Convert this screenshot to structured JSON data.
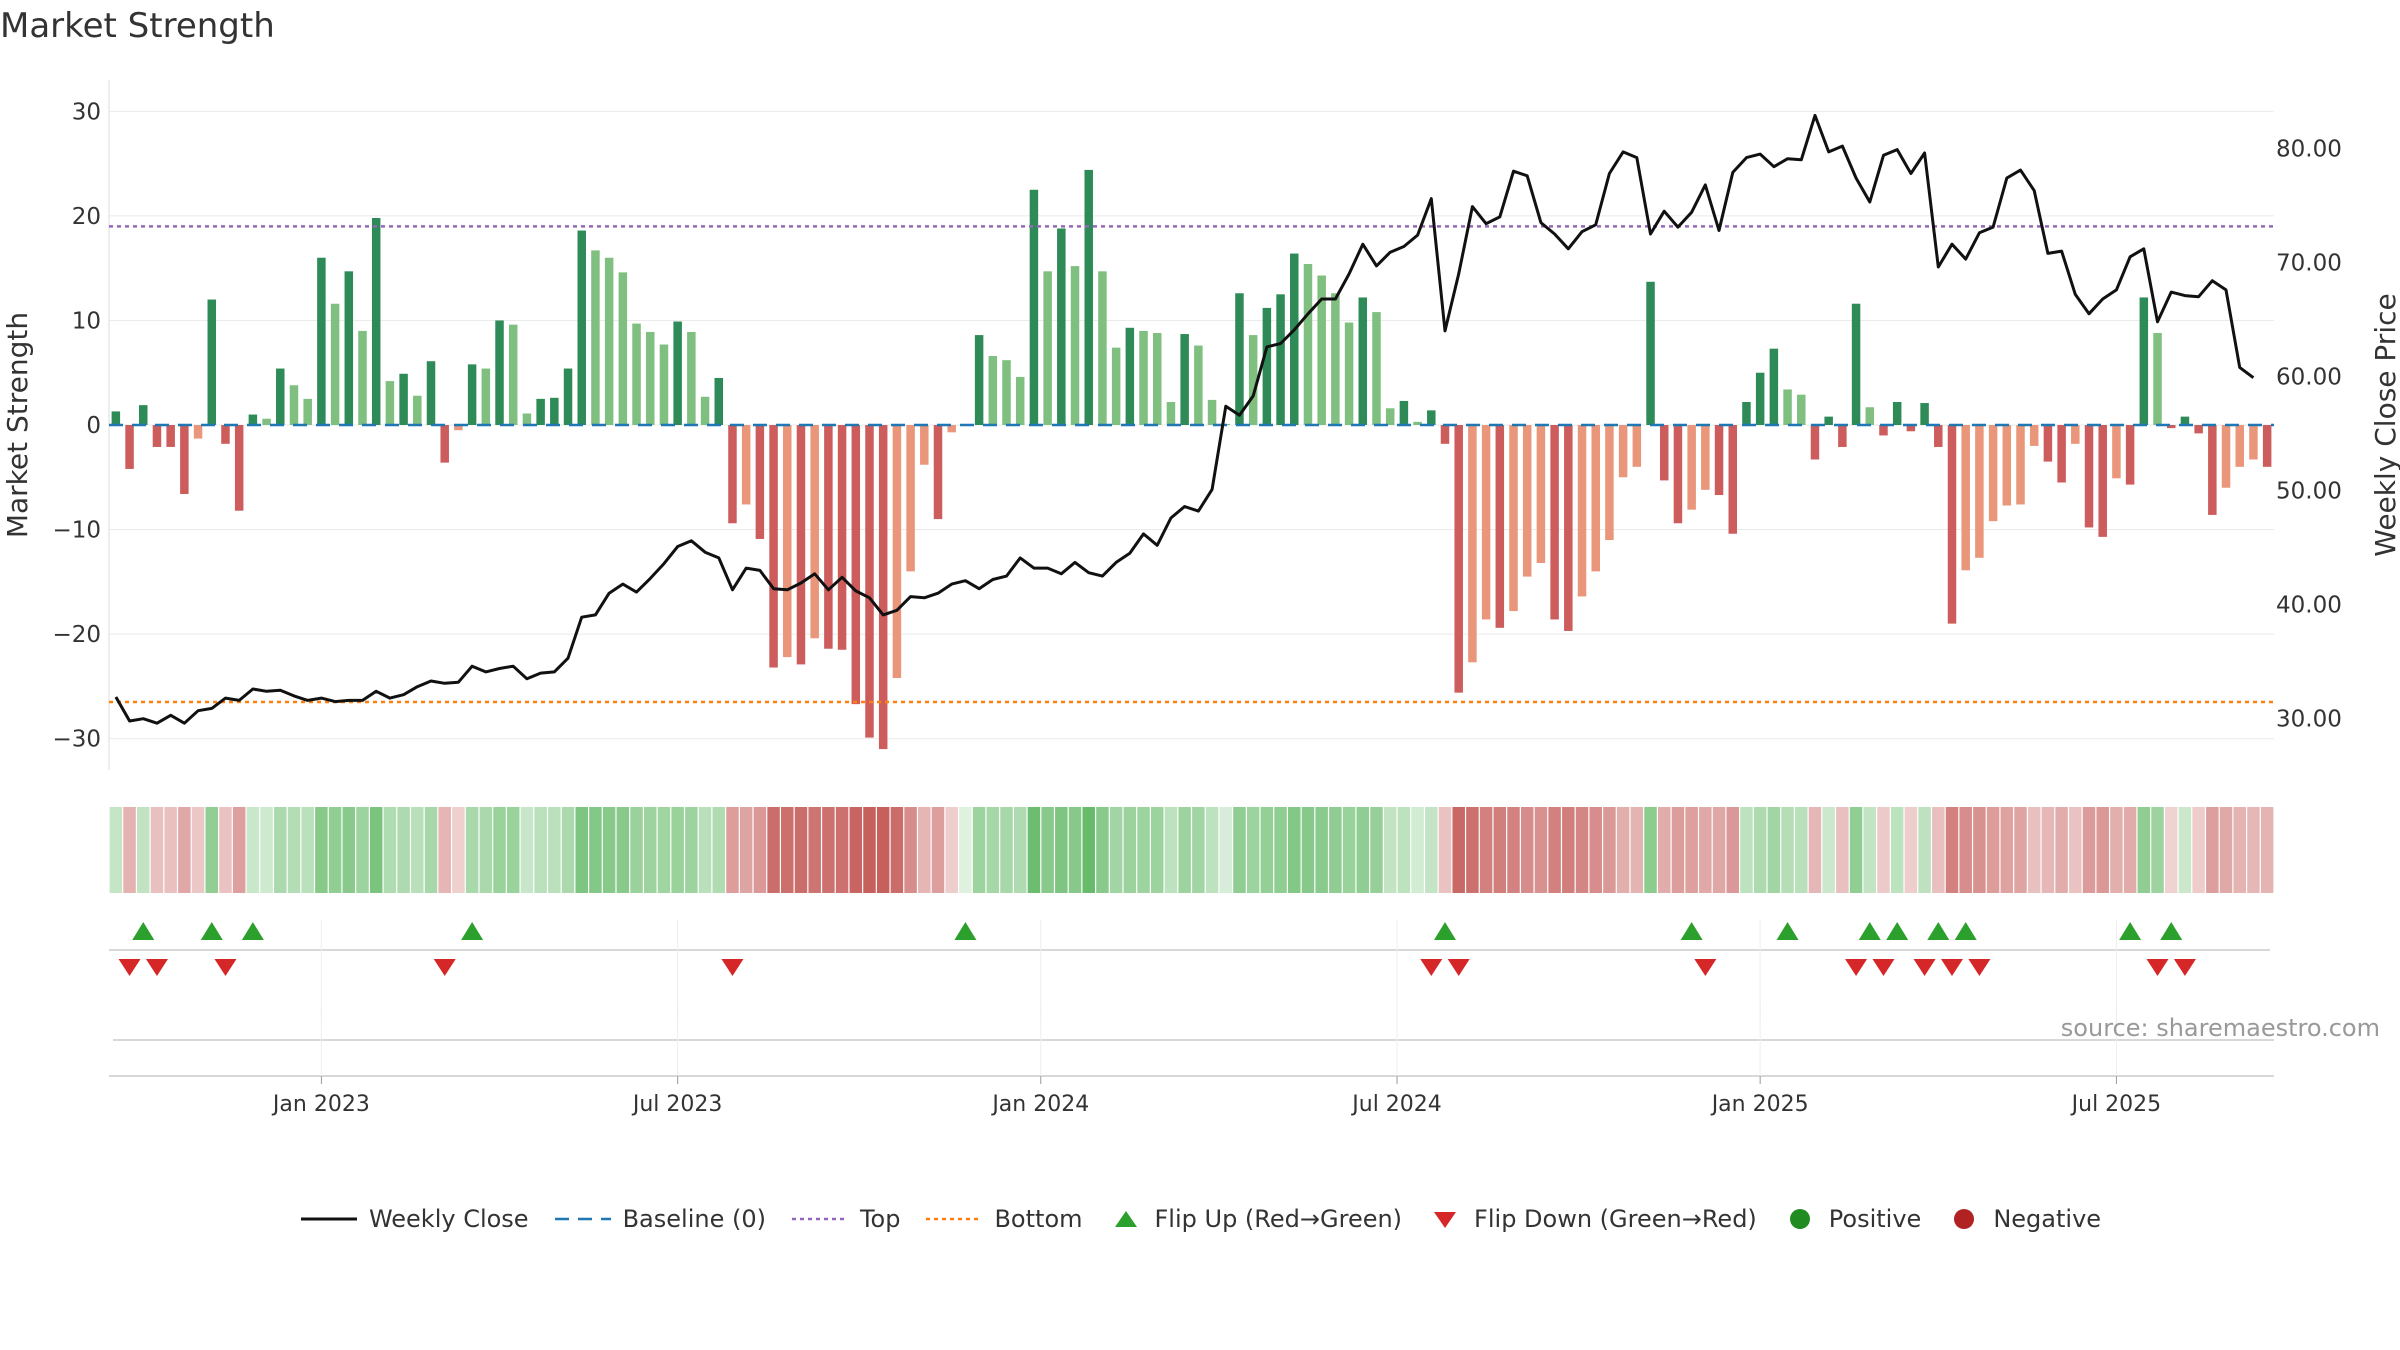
{
  "title": "Market Strength",
  "source": "source: sharemaestro.com",
  "colors": {
    "strong_pos": "#2e8b57",
    "weak_pos": "#7fbf7f",
    "strong_neg": "#cd5c5c",
    "weak_neg": "#e9967a",
    "close_line": "#111111",
    "baseline": "#1f77b4",
    "top": "#9467bd",
    "bottom": "#ff7f0e",
    "flip_up": "#2ca02c",
    "flip_down": "#d62728",
    "positive": "#228b22",
    "negative": "#b22222"
  },
  "legend": [
    {
      "key": "close",
      "label": "Weekly Close"
    },
    {
      "key": "baseline",
      "label": "Baseline (0)"
    },
    {
      "key": "top",
      "label": "Top"
    },
    {
      "key": "bottom",
      "label": "Bottom"
    },
    {
      "key": "flip_up",
      "label": "Flip Up (Red→Green)"
    },
    {
      "key": "flip_down",
      "label": "Flip Down (Green→Red)"
    },
    {
      "key": "positive",
      "label": "Positive"
    },
    {
      "key": "negative",
      "label": "Negative"
    }
  ],
  "chart_data": {
    "type": "bar",
    "title": "Market Strength",
    "ylabel": "Market Strength",
    "y2label": "Weekly Close Price",
    "ylim": [
      -33,
      33
    ],
    "y_ticks": [
      30,
      20,
      10,
      0,
      -10,
      -20,
      -30
    ],
    "y_tick_labels": [
      "30",
      "20",
      "10",
      "0",
      "−10",
      "−20",
      "−30"
    ],
    "y2lim": [
      25.5,
      86
    ],
    "y2_ticks": [
      80,
      70,
      60,
      50,
      40,
      30
    ],
    "y2_tick_labels": [
      "80.00",
      "70.00",
      "60.00",
      "50.00",
      "40.00",
      "30.00"
    ],
    "x_ticks": [
      15.0,
      41.0,
      67.5,
      93.5,
      120.0,
      146.0
    ],
    "x_tick_labels": [
      "Jan 2023",
      "Jul 2023",
      "Jan 2024",
      "Jul 2024",
      "Jan 2025",
      "Jul 2025"
    ],
    "top_level": 19,
    "bottom_level": -26.5,
    "series": [
      {
        "name": "Market Strength",
        "values": [
          1.3,
          -4.2,
          1.9,
          -2.1,
          -2.1,
          -6.6,
          -1.3,
          12.0,
          -1.8,
          -8.2,
          1.0,
          0.6,
          5.4,
          3.8,
          2.5,
          16.0,
          11.6,
          14.7,
          9.0,
          19.8,
          4.2,
          4.9,
          2.8,
          6.1,
          -3.6,
          -0.5,
          5.8,
          5.4,
          10.0,
          9.6,
          1.1,
          2.5,
          2.6,
          5.4,
          18.6,
          16.7,
          16.0,
          14.6,
          9.7,
          8.9,
          7.7,
          9.9,
          8.9,
          2.7,
          4.5,
          -9.4,
          -7.6,
          -10.9,
          -23.2,
          -22.2,
          -22.9,
          -20.4,
          -21.4,
          -21.5,
          -26.7,
          -29.9,
          -31.0,
          -24.2,
          -14.0,
          -3.8,
          -9.0,
          -0.7,
          0.0,
          8.6,
          6.6,
          6.2,
          4.6,
          22.5,
          14.7,
          18.8,
          15.2,
          24.4,
          14.7,
          7.4,
          9.3,
          9.0,
          8.8,
          2.2,
          8.7,
          7.6,
          2.4,
          0.1,
          12.6,
          8.6,
          11.2,
          12.5,
          16.4,
          15.4,
          14.3,
          12.6,
          9.8,
          12.2,
          10.8,
          1.6,
          2.3,
          0.3,
          1.4,
          -1.8,
          -25.6,
          -22.7,
          -18.6,
          -19.4,
          -17.8,
          -14.5,
          -13.2,
          -18.6,
          -19.7,
          -16.4,
          -14.0,
          -11.0,
          -5.0,
          -4.0,
          13.7,
          -5.3,
          -9.4,
          -8.1,
          -6.2,
          -6.7,
          -10.4,
          2.2,
          5.0,
          7.3,
          3.4,
          2.9,
          -3.3,
          0.8,
          -2.1,
          11.6,
          1.7,
          -1.0,
          2.2,
          -0.6,
          2.1,
          -2.1,
          -19.0,
          -13.9,
          -12.7,
          -9.2,
          -7.7,
          -7.6,
          -2.0,
          -3.5,
          -5.5,
          -1.8,
          -9.8,
          -10.7,
          -5.1,
          -5.7,
          12.2,
          8.8,
          -0.3,
          0.8,
          -0.8,
          -8.6,
          -6.0,
          -4.0,
          -3.3,
          -4.0
        ]
      },
      {
        "name": "Weekly Close",
        "values": [
          31.9,
          29.8,
          30.0,
          29.6,
          30.3,
          29.6,
          30.7,
          30.9,
          31.8,
          31.6,
          32.6,
          32.4,
          32.5,
          32.0,
          31.6,
          31.8,
          31.5,
          31.6,
          31.6,
          32.4,
          31.8,
          32.1,
          32.8,
          33.3,
          33.1,
          33.2,
          34.6,
          34.1,
          34.4,
          34.6,
          33.5,
          34.0,
          34.1,
          35.3,
          38.9,
          39.1,
          41.0,
          41.8,
          41.1,
          42.3,
          43.6,
          45.1,
          45.6,
          44.6,
          44.1,
          41.3,
          43.2,
          43.0,
          41.4,
          41.3,
          41.9,
          42.7,
          41.3,
          42.4,
          41.2,
          40.6,
          39.1,
          39.5,
          40.7,
          40.6,
          41.0,
          41.8,
          42.1,
          41.4,
          42.2,
          42.5,
          44.1,
          43.2,
          43.2,
          42.7,
          43.7,
          42.8,
          42.5,
          43.7,
          44.5,
          46.2,
          45.2,
          47.6,
          48.6,
          48.2,
          50.1,
          57.4,
          56.6,
          58.3,
          62.6,
          62.9,
          64.1,
          65.5,
          66.8,
          66.8,
          69.0,
          71.6,
          69.7,
          70.9,
          71.4,
          72.4,
          75.6,
          64.0,
          69.0,
          74.9,
          73.4,
          74.0,
          78.0,
          77.6,
          73.5,
          72.5,
          71.2,
          72.7,
          73.3,
          77.8,
          79.7,
          79.2,
          72.5,
          74.5,
          73.1,
          74.4,
          76.8,
          72.8,
          77.9,
          79.2,
          79.5,
          78.4,
          79.1,
          79.0,
          82.9,
          79.7,
          80.2,
          77.4,
          75.3,
          79.4,
          79.9,
          77.8,
          79.6,
          69.6,
          71.6,
          70.3,
          72.6,
          73.1,
          77.4,
          78.1,
          76.3,
          70.8,
          71.0,
          67.2,
          65.5,
          66.8,
          67.6,
          70.5,
          71.2,
          64.8,
          67.4,
          67.1,
          67.0,
          68.4,
          67.6,
          60.8,
          59.9
        ]
      }
    ],
    "flip_up_weeks": [
      2,
      7,
      10,
      26,
      62,
      97,
      115,
      122,
      128,
      130,
      133,
      135,
      147,
      150
    ],
    "flip_down_weeks": [
      1,
      3,
      8,
      24,
      45,
      96,
      98,
      116,
      127,
      129,
      132,
      134,
      136,
      149,
      151
    ]
  }
}
